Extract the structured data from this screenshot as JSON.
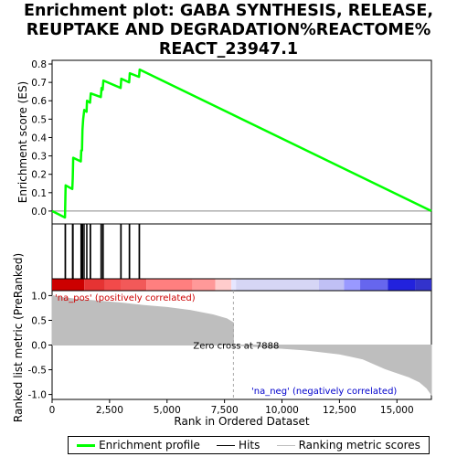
{
  "title_lines": [
    "Enrichment plot: GABA SYNTHESIS, RELEASE,",
    "REUPTAKE AND DEGRADATION%REACTOME%",
    "REACT_23947.1"
  ],
  "colors": {
    "es_line": "#00ff00",
    "hits": "#000000",
    "ranked": "#bebebe",
    "pos_label": "#cc0000",
    "neg_label": "#0000cc",
    "zero_cross_line": "#aaaaaa"
  },
  "legend": [
    {
      "label": "Enrichment profile",
      "color": "#00ff00",
      "kind": "line"
    },
    {
      "label": "Hits",
      "color": "#000000",
      "kind": "line"
    },
    {
      "label": "Ranking metric scores",
      "color": "#bebebe",
      "kind": "line"
    }
  ],
  "chart_data": {
    "type": "line",
    "x_label": "Rank in Ordered Dataset",
    "es_ylabel": "Enrichment score (ES)",
    "rank_ylabel": "Ranked list metric (PreRanked)",
    "x_ticks": [
      "0",
      "2,500",
      "5,000",
      "7,500",
      "10,000",
      "12,500",
      "15,000"
    ],
    "x_tick_values": [
      0,
      2500,
      5000,
      7500,
      10000,
      12500,
      15000
    ],
    "xlim": [
      0,
      16500
    ],
    "es_ylim": [
      -0.07,
      0.82
    ],
    "es_ticks": [
      "0.0",
      "0.1",
      "0.2",
      "0.3",
      "0.4",
      "0.5",
      "0.6",
      "0.7",
      "0.8"
    ],
    "es_tick_values": [
      0,
      0.1,
      0.2,
      0.3,
      0.4,
      0.5,
      0.6,
      0.7,
      0.8
    ],
    "rank_ylim": [
      -1.1,
      1.1
    ],
    "rank_ticks": [
      "1.0",
      "0.5",
      "0.0",
      "-0.5",
      "-1.0"
    ],
    "rank_tick_values": [
      1,
      0.5,
      0,
      -0.5,
      -1
    ],
    "es_profile": [
      [
        0,
        0
      ],
      [
        560,
        -0.035
      ],
      [
        590,
        0.14
      ],
      [
        880,
        0.12
      ],
      [
        900,
        0.18
      ],
      [
        920,
        0.29
      ],
      [
        1250,
        0.27
      ],
      [
        1270,
        0.33
      ],
      [
        1300,
        0.33
      ],
      [
        1320,
        0.44
      ],
      [
        1350,
        0.5
      ],
      [
        1400,
        0.55
      ],
      [
        1500,
        0.54
      ],
      [
        1520,
        0.6
      ],
      [
        1650,
        0.59
      ],
      [
        1680,
        0.64
      ],
      [
        2120,
        0.62
      ],
      [
        2150,
        0.67
      ],
      [
        2200,
        0.66
      ],
      [
        2230,
        0.71
      ],
      [
        2980,
        0.67
      ],
      [
        3010,
        0.72
      ],
      [
        3350,
        0.7
      ],
      [
        3380,
        0.75
      ],
      [
        3780,
        0.73
      ],
      [
        3810,
        0.77
      ],
      [
        16500,
        0
      ]
    ],
    "hits": [
      560,
      590,
      880,
      900,
      920,
      1250,
      1270,
      1300,
      1320,
      1350,
      1400,
      1500,
      1520,
      1650,
      1680,
      2120,
      2150,
      2200,
      2230,
      2980,
      3010,
      3350,
      3380,
      3780,
      3810
    ],
    "ranked_metric": [
      [
        0,
        1.0
      ],
      [
        300,
        0.97
      ],
      [
        1000,
        0.93
      ],
      [
        2000,
        0.89
      ],
      [
        3000,
        0.85
      ],
      [
        4000,
        0.8
      ],
      [
        5000,
        0.76
      ],
      [
        6000,
        0.7
      ],
      [
        7000,
        0.61
      ],
      [
        7600,
        0.53
      ],
      [
        7888,
        0.45
      ],
      [
        7888,
        0
      ],
      [
        9500,
        -0.05
      ],
      [
        11000,
        -0.1
      ],
      [
        12500,
        -0.18
      ],
      [
        13500,
        -0.28
      ],
      [
        14500,
        -0.48
      ],
      [
        15500,
        -0.64
      ],
      [
        16000,
        -0.75
      ],
      [
        16300,
        -0.87
      ],
      [
        16500,
        -1.0
      ]
    ],
    "zero_cross_rank": 7888,
    "zero_cross_label": "Zero cross at 7888",
    "pos_label": "'na_pos' (positively correlated)",
    "neg_label": "'na_neg' (negatively correlated)",
    "heat_bar": [
      [
        0,
        1400,
        "#cc0000"
      ],
      [
        1400,
        2300,
        "#e63333"
      ],
      [
        2300,
        3000,
        "#f24a4a"
      ],
      [
        3000,
        4100,
        "#f25959"
      ],
      [
        4100,
        6100,
        "#ff7f7f"
      ],
      [
        6100,
        7100,
        "#ff9999"
      ],
      [
        7100,
        7800,
        "#ffcccc"
      ],
      [
        7800,
        8000,
        "#e6e6ff"
      ],
      [
        8000,
        11600,
        "#d6d6f5"
      ],
      [
        11600,
        12700,
        "#c0c0f5"
      ],
      [
        12700,
        13400,
        "#9999ff"
      ],
      [
        13400,
        14600,
        "#6666ee"
      ],
      [
        14600,
        15800,
        "#2222dd"
      ],
      [
        15800,
        16500,
        "#3333cc"
      ]
    ]
  }
}
